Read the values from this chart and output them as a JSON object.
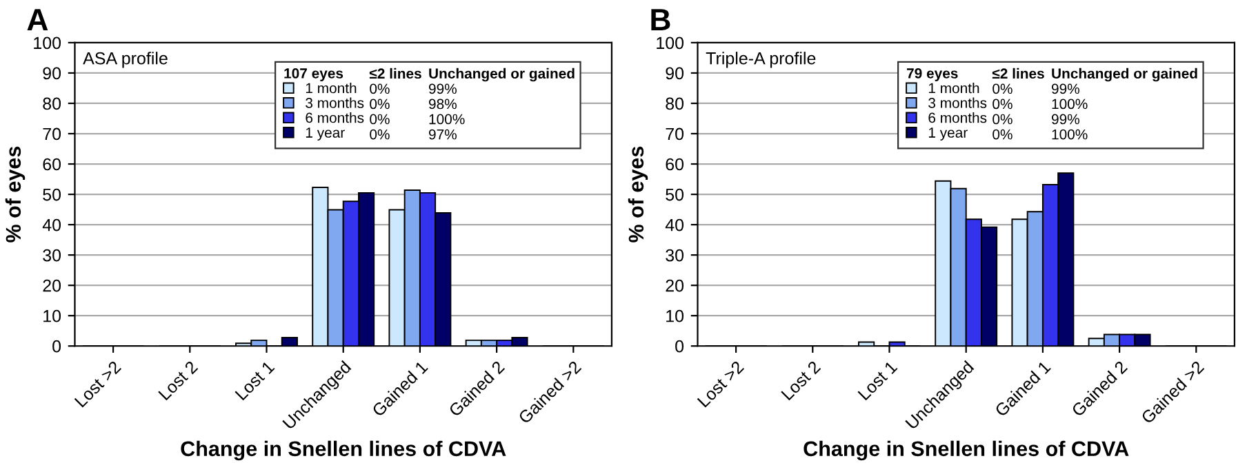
{
  "chart_data": [
    {
      "type": "bar",
      "title": "A",
      "xlabel": "Change in Snellen lines of CDVA",
      "ylabel": "% of eyes",
      "categories": [
        "Lost >2",
        "Lost 2",
        "Lost 1",
        "Unchanged",
        "Gained 1",
        "Gained 2",
        "Gained >2"
      ],
      "series": [
        {
          "name": "1 month",
          "color": "#cce8ff",
          "values": [
            0,
            0,
            0.9,
            52.3,
            44.9,
            1.9,
            0
          ]
        },
        {
          "name": "3 months",
          "color": "#7fa8f0",
          "values": [
            0,
            0,
            1.9,
            44.9,
            51.4,
            1.9,
            0
          ]
        },
        {
          "name": "6 months",
          "color": "#3333ee",
          "values": [
            0,
            0,
            0,
            47.7,
            50.5,
            1.9,
            0
          ]
        },
        {
          "name": "1 year",
          "color": "#000066",
          "values": [
            0,
            0,
            2.8,
            50.5,
            43.9,
            2.8,
            0
          ]
        }
      ],
      "legend_title": "107 eyes",
      "annotations": [
        "ASA profile",
        "≤2 lines",
        "Unchanged or gained",
        "0%",
        "99%",
        "0%",
        "98%",
        "0%",
        "100%",
        "0%",
        "97%"
      ],
      "ylim": [
        0,
        100
      ],
      "yticks": [
        0,
        10,
        20,
        30,
        40,
        50,
        60,
        70,
        80,
        90,
        100
      ],
      "grid": "y",
      "legend": "top"
    },
    {
      "type": "bar",
      "title": "B",
      "xlabel": "Change in Snellen lines of CDVA",
      "ylabel": "% of eyes",
      "categories": [
        "Lost >2",
        "Lost 2",
        "Lost 1",
        "Unchanged",
        "Gained 1",
        "Gained 2",
        "Gained >2"
      ],
      "series": [
        {
          "name": "1 month",
          "color": "#cce8ff",
          "values": [
            0,
            0,
            1.3,
            54.4,
            41.8,
            2.5,
            0
          ]
        },
        {
          "name": "3 months",
          "color": "#7fa8f0",
          "values": [
            0,
            0,
            0,
            51.9,
            44.3,
            3.8,
            0
          ]
        },
        {
          "name": "6 months",
          "color": "#3333ee",
          "values": [
            0,
            0,
            1.3,
            41.8,
            53.2,
            3.8,
            0
          ]
        },
        {
          "name": "1 year",
          "color": "#000066",
          "values": [
            0,
            0,
            0,
            39.2,
            57.0,
            3.8,
            0
          ]
        }
      ],
      "legend_title": "79 eyes",
      "annotations": [
        "Triple-A profile",
        "≤2 lines",
        "Unchanged or gained",
        "0%",
        "99%",
        "0%",
        "100%",
        "0%",
        "99%",
        "0%",
        "100%"
      ],
      "ylim": [
        0,
        100
      ],
      "yticks": [
        0,
        10,
        20,
        30,
        40,
        50,
        60,
        70,
        80,
        90,
        100
      ],
      "grid": "y",
      "legend": "top"
    }
  ]
}
